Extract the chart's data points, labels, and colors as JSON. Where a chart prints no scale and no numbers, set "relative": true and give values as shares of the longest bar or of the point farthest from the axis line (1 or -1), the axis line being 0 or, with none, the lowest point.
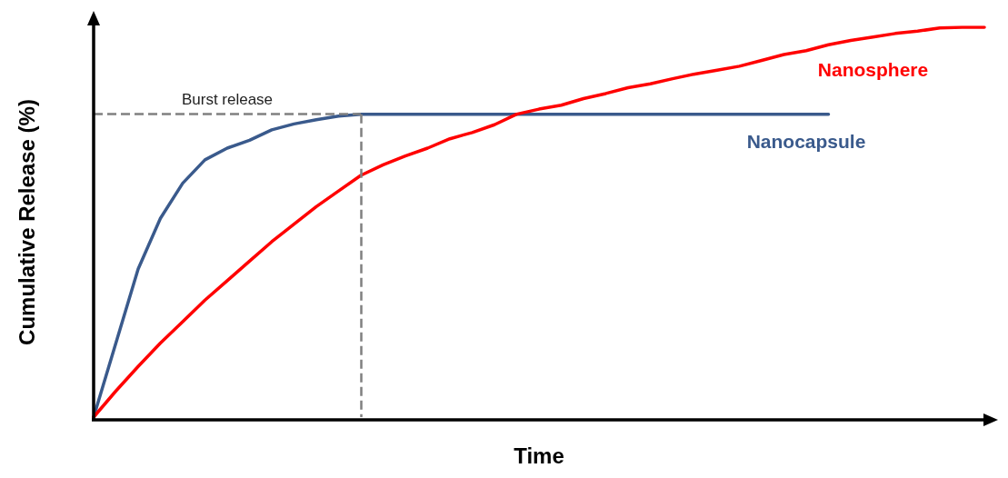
{
  "chart_data": {
    "type": "line",
    "relative": true,
    "xlabel": "Time",
    "ylabel": "Cumulative Release (%)",
    "categories": [
      null,
      null,
      null,
      null,
      null,
      null,
      null,
      null,
      null,
      null,
      null,
      null,
      null,
      null,
      null,
      null,
      null,
      null,
      null,
      null,
      null,
      null,
      null,
      null,
      null,
      null,
      null,
      null,
      null,
      null,
      null,
      null,
      null,
      null,
      null,
      null,
      null,
      null,
      null,
      null,
      null
    ],
    "series": [
      {
        "name": "Nanocapsule",
        "color": "#3a5a8c",
        "values": [
          0,
          0.19,
          0.38,
          0.51,
          0.6,
          0.66,
          0.69,
          0.71,
          0.737,
          0.752,
          0.763,
          0.772,
          0.777,
          0.777,
          0.777,
          0.777,
          0.777,
          0.777,
          0.777,
          0.777,
          0.777,
          0.777,
          0.777,
          0.777,
          0.777,
          0.777,
          0.777,
          0.777,
          0.777,
          0.777,
          0.777,
          0.777,
          0.777,
          0.777,
          null,
          null,
          null,
          null,
          null,
          null,
          null
        ]
      },
      {
        "name": "Nanosphere",
        "color": "#ff0000",
        "values": [
          0,
          0.067,
          0.13,
          0.19,
          0.245,
          0.3,
          0.35,
          0.4,
          0.45,
          0.495,
          0.54,
          0.58,
          0.62,
          0.647,
          0.67,
          0.69,
          0.714,
          0.73,
          0.75,
          0.777,
          0.79,
          0.8,
          0.817,
          0.83,
          0.845,
          0.855,
          0.868,
          0.88,
          0.89,
          0.9,
          0.915,
          0.93,
          0.94,
          0.955,
          0.966,
          0.975,
          0.984,
          0.99,
          0.998,
          1,
          1
        ]
      }
    ],
    "ref_lines": [
      {
        "axis": "y",
        "value": 0.777,
        "label": "Burst release",
        "color": "#808080",
        "line_style": "dashed"
      }
    ],
    "grid": false,
    "legend": false,
    "marker": "none",
    "line_style": "solid"
  }
}
